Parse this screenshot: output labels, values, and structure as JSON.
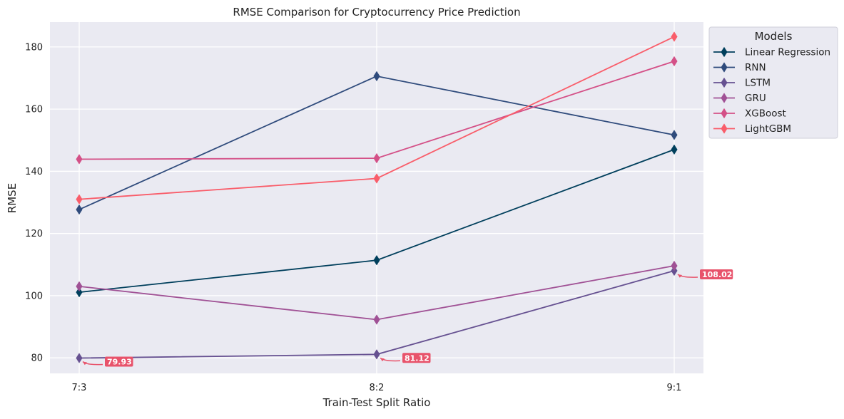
{
  "chart_data": {
    "type": "line",
    "title": "RMSE Comparison for Cryptocurrency Price Prediction",
    "xlabel": "Train-Test Split Ratio",
    "ylabel": "RMSE",
    "categories": [
      "7:3",
      "8:2",
      "9:1"
    ],
    "ylim": [
      75,
      188
    ],
    "yticks": [
      80,
      100,
      120,
      140,
      160,
      180
    ],
    "grid": true,
    "legend": {
      "title": "Models",
      "placement": "outside-top-right"
    },
    "series": [
      {
        "name": "Linear Regression",
        "color": "#003f5c",
        "values": [
          101.1,
          111.4,
          147.0
        ]
      },
      {
        "name": "RNN",
        "color": "#2f4b7c",
        "values": [
          127.7,
          170.6,
          151.7
        ]
      },
      {
        "name": "LSTM",
        "color": "#665191",
        "values": [
          79.93,
          81.12,
          108.02
        ]
      },
      {
        "name": "GRU",
        "color": "#a05195",
        "values": [
          103.0,
          92.3,
          109.6
        ]
      },
      {
        "name": "XGBoost",
        "color": "#d45087",
        "values": [
          143.9,
          144.2,
          175.4
        ]
      },
      {
        "name": "LightGBM",
        "color": "#f95d6a",
        "values": [
          131.0,
          137.7,
          183.3
        ]
      }
    ],
    "annotations": [
      {
        "label": "79.93",
        "series": "LSTM",
        "category": "7:3",
        "value": 79.93,
        "color": "#e8536b"
      },
      {
        "label": "81.12",
        "series": "LSTM",
        "category": "8:2",
        "value": 81.12,
        "color": "#e8536b"
      },
      {
        "label": "108.02",
        "series": "LSTM",
        "category": "9:1",
        "value": 108.02,
        "color": "#e8536b"
      }
    ],
    "plot_background": "#eaeaf2",
    "grid_color": "#ffffff"
  }
}
